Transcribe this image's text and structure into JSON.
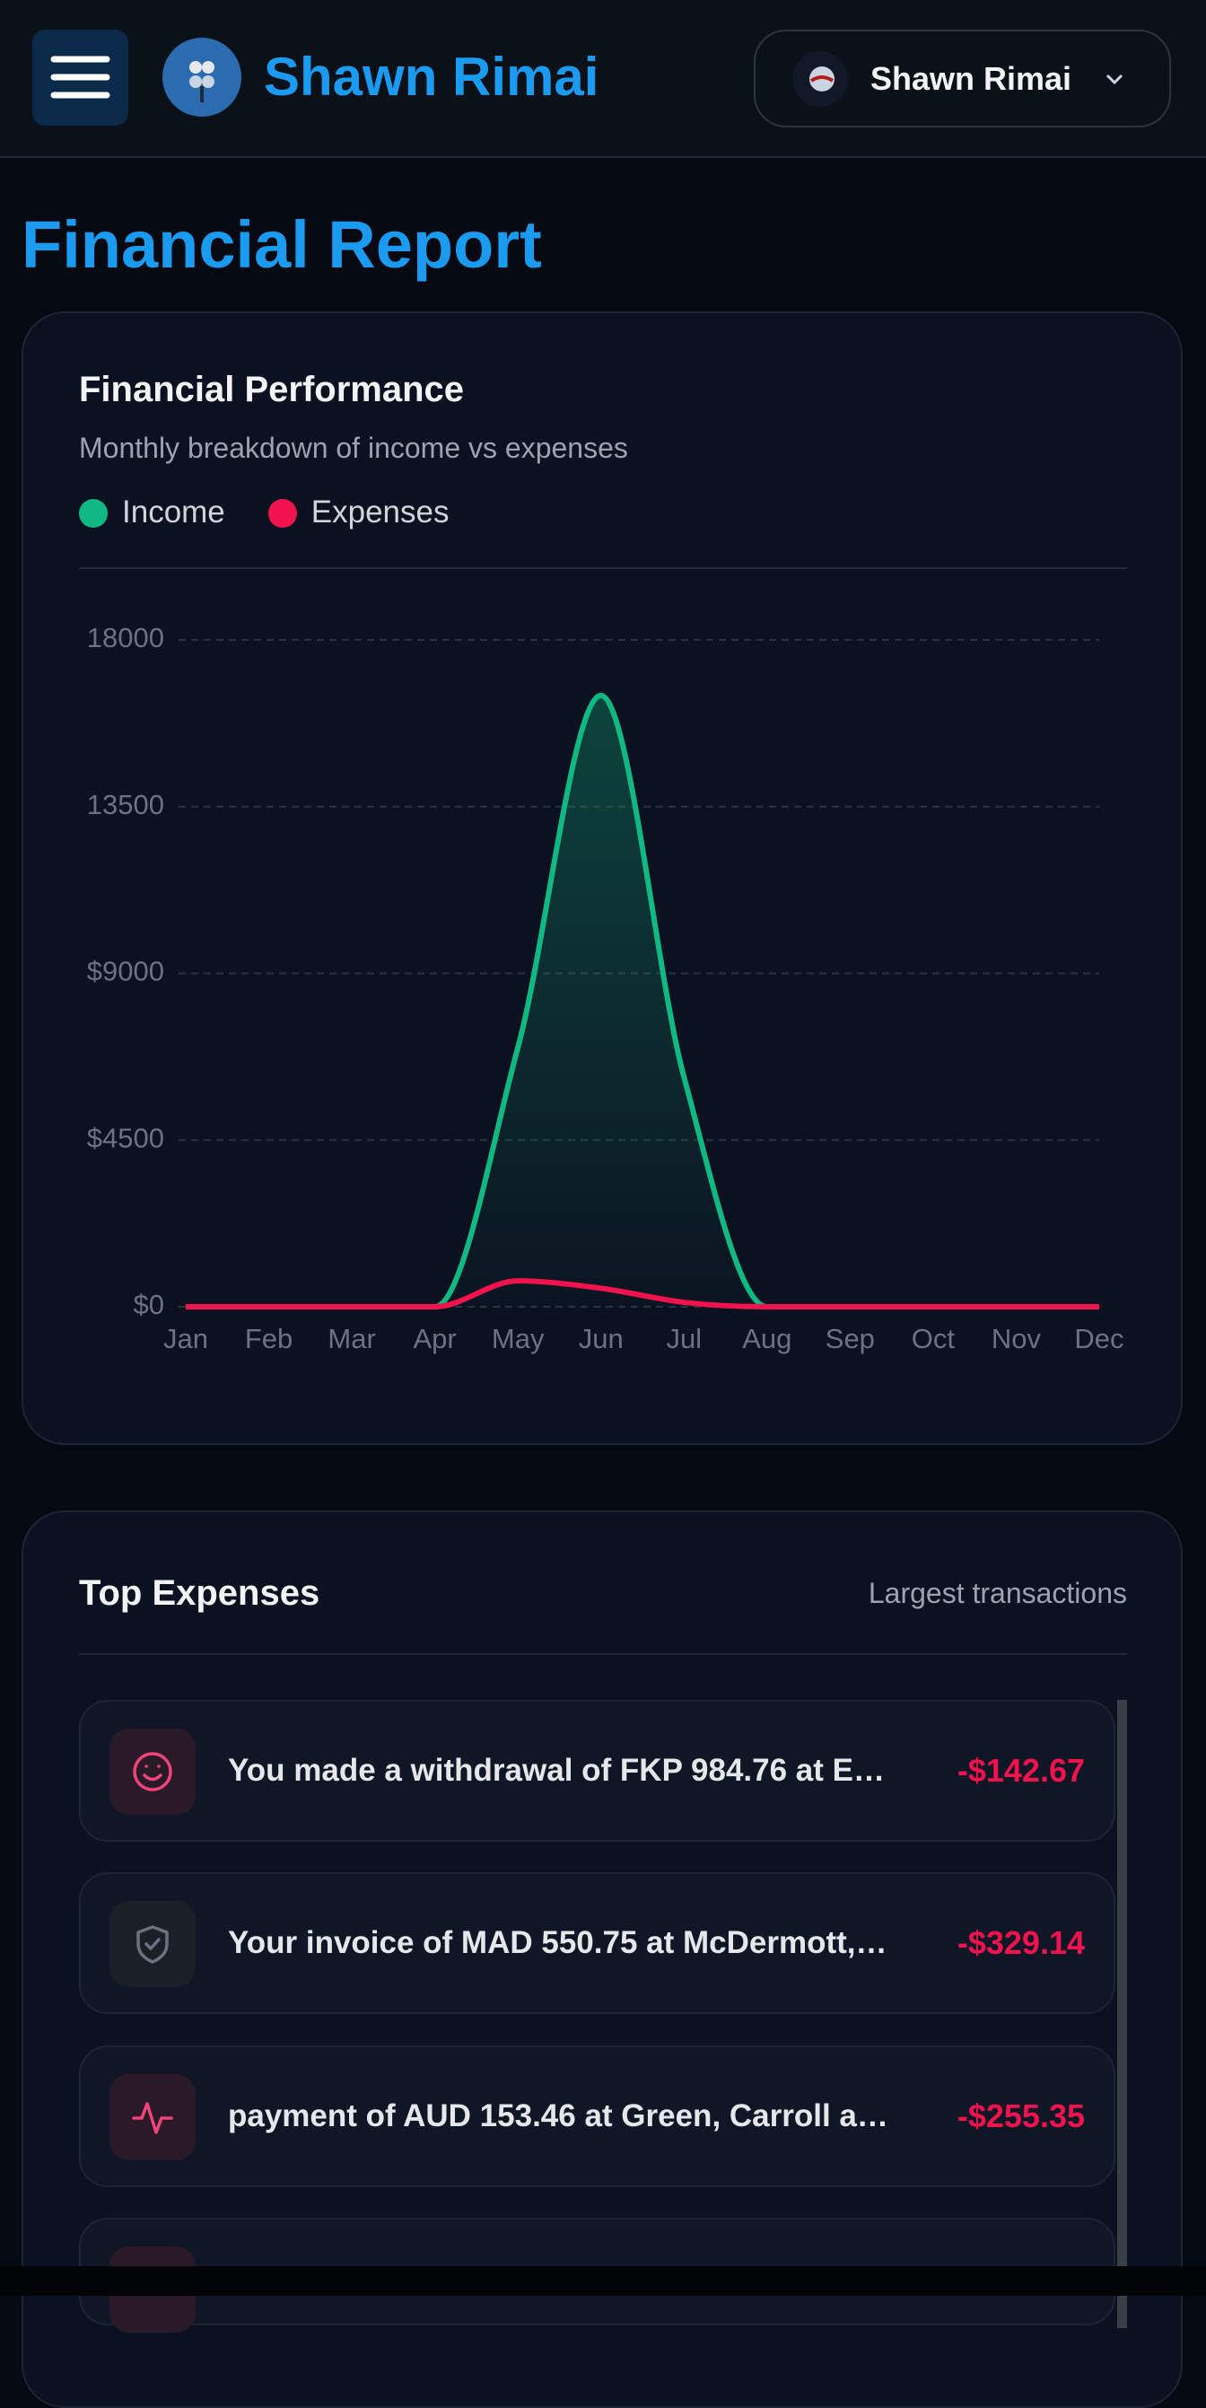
{
  "header": {
    "brand": "Shawn Rimai",
    "user": "Shawn Rimai"
  },
  "page_title": "Financial Report",
  "chart_data": {
    "type": "area",
    "title": "Financial Performance",
    "subtitle": "Monthly breakdown of income vs expenses",
    "categories": [
      "Jan",
      "Feb",
      "Mar",
      "Apr",
      "May",
      "Jun",
      "Jul",
      "Aug",
      "Sep",
      "Oct",
      "Nov",
      "Dec"
    ],
    "series": [
      {
        "name": "Income",
        "color": "#10b981",
        "values": [
          0,
          0,
          0,
          0,
          7000,
          16500,
          6200,
          0,
          0,
          0,
          0,
          0
        ]
      },
      {
        "name": "Expenses",
        "color": "#f0134d",
        "values": [
          0,
          0,
          0,
          0,
          700,
          500,
          120,
          0,
          0,
          0,
          0,
          0
        ]
      }
    ],
    "ylim": [
      0,
      18000
    ],
    "yticks": [
      {
        "value": 0,
        "label": "$0"
      },
      {
        "value": 4500,
        "label": "$4500"
      },
      {
        "value": 9000,
        "label": "$9000"
      },
      13500,
      18000
    ],
    "grid": true
  },
  "expenses": {
    "title": "Top Expenses",
    "subtitle": "Largest transactions",
    "items": [
      {
        "description": "You made a withdrawal of FKP 984.76 at E…",
        "amount": "-$142.67"
      },
      {
        "description": "Your invoice of MAD 550.75 at McDermott,…",
        "amount": "-$329.14"
      },
      {
        "description": "payment of AUD 153.46 at Green, Carroll a…",
        "amount": "-$255.35"
      }
    ]
  }
}
